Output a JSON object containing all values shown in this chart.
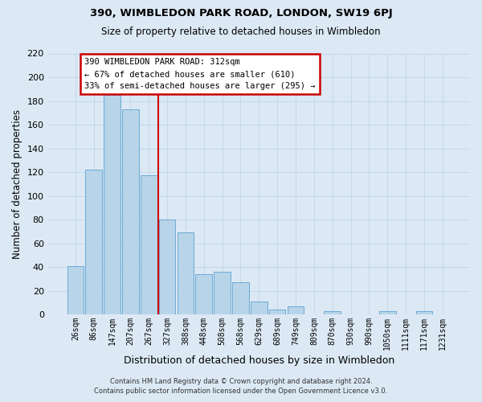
{
  "title1": "390, WIMBLEDON PARK ROAD, LONDON, SW19 6PJ",
  "title2": "Size of property relative to detached houses in Wimbledon",
  "xlabel": "Distribution of detached houses by size in Wimbledon",
  "ylabel": "Number of detached properties",
  "bar_labels": [
    "26sqm",
    "86sqm",
    "147sqm",
    "207sqm",
    "267sqm",
    "327sqm",
    "388sqm",
    "448sqm",
    "508sqm",
    "568sqm",
    "629sqm",
    "689sqm",
    "749sqm",
    "809sqm",
    "870sqm",
    "930sqm",
    "990sqm",
    "1050sqm",
    "1111sqm",
    "1171sqm",
    "1231sqm"
  ],
  "bar_heights": [
    41,
    122,
    185,
    173,
    117,
    80,
    69,
    34,
    36,
    27,
    11,
    4,
    7,
    0,
    3,
    0,
    0,
    3,
    0,
    3,
    0
  ],
  "bar_color": "#b8d4e8",
  "bar_edge_color": "#6aaad4",
  "grid_color": "#c5d8ea",
  "bg_color": "#dce9f5",
  "property_line_x": 4.5,
  "annotation_title": "390 WIMBLEDON PARK ROAD: 312sqm",
  "annotation_line1": "← 67% of detached houses are smaller (610)",
  "annotation_line2": "33% of semi-detached houses are larger (295) →",
  "annotation_box_color": "#ffffff",
  "annotation_box_edge": "#cc0000",
  "vline_color": "#cc0000",
  "footer1": "Contains HM Land Registry data © Crown copyright and database right 2024.",
  "footer2": "Contains public sector information licensed under the Open Government Licence v3.0.",
  "ylim": [
    0,
    220
  ],
  "yticks": [
    0,
    20,
    40,
    60,
    80,
    100,
    120,
    140,
    160,
    180,
    200,
    220
  ]
}
